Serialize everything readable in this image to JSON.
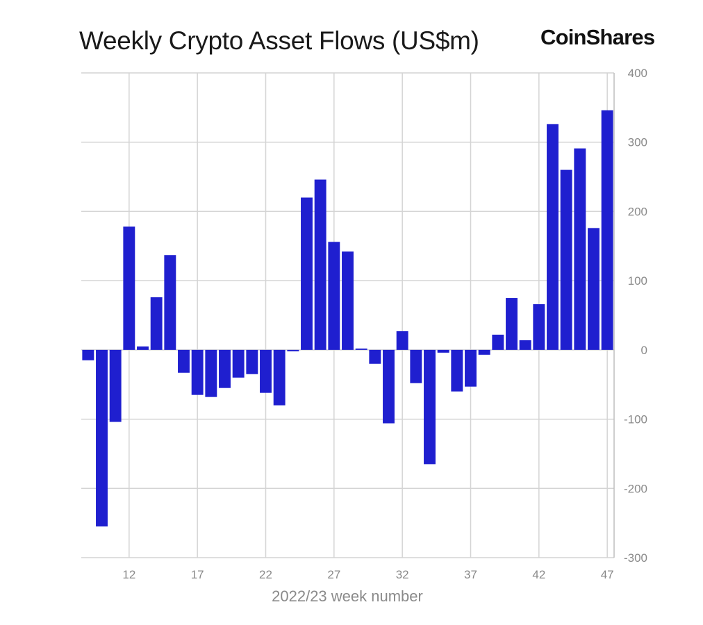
{
  "brand": {
    "name": "CoinShares"
  },
  "chart_data": {
    "type": "bar",
    "title": "Weekly Crypto Asset Flows (US$m)",
    "xlabel": "2022/23 week number",
    "ylabel": "",
    "ylim": [
      -300,
      400
    ],
    "yticks": [
      400,
      300,
      200,
      100,
      0,
      -100,
      -200,
      -300
    ],
    "xticks": [
      "12",
      "17",
      "22",
      "27",
      "32",
      "37",
      "42",
      "47"
    ],
    "grid": true,
    "color": "#1f1fcf",
    "weeks": [
      9,
      10,
      11,
      12,
      13,
      14,
      15,
      16,
      17,
      18,
      19,
      20,
      21,
      22,
      23,
      24,
      25,
      26,
      27,
      28,
      29,
      30,
      31,
      32,
      33,
      34,
      35,
      36,
      37,
      38,
      39,
      40,
      41,
      42,
      43,
      44,
      45,
      46,
      47
    ],
    "values": [
      -15,
      -255,
      -104,
      178,
      5,
      76,
      137,
      -33,
      -65,
      -68,
      -55,
      -40,
      -35,
      -62,
      -80,
      -2,
      220,
      246,
      156,
      142,
      2,
      -20,
      -106,
      27,
      -48,
      -165,
      -4,
      -60,
      -53,
      -7,
      22,
      75,
      14,
      66,
      326,
      260,
      291,
      176,
      346
    ]
  }
}
